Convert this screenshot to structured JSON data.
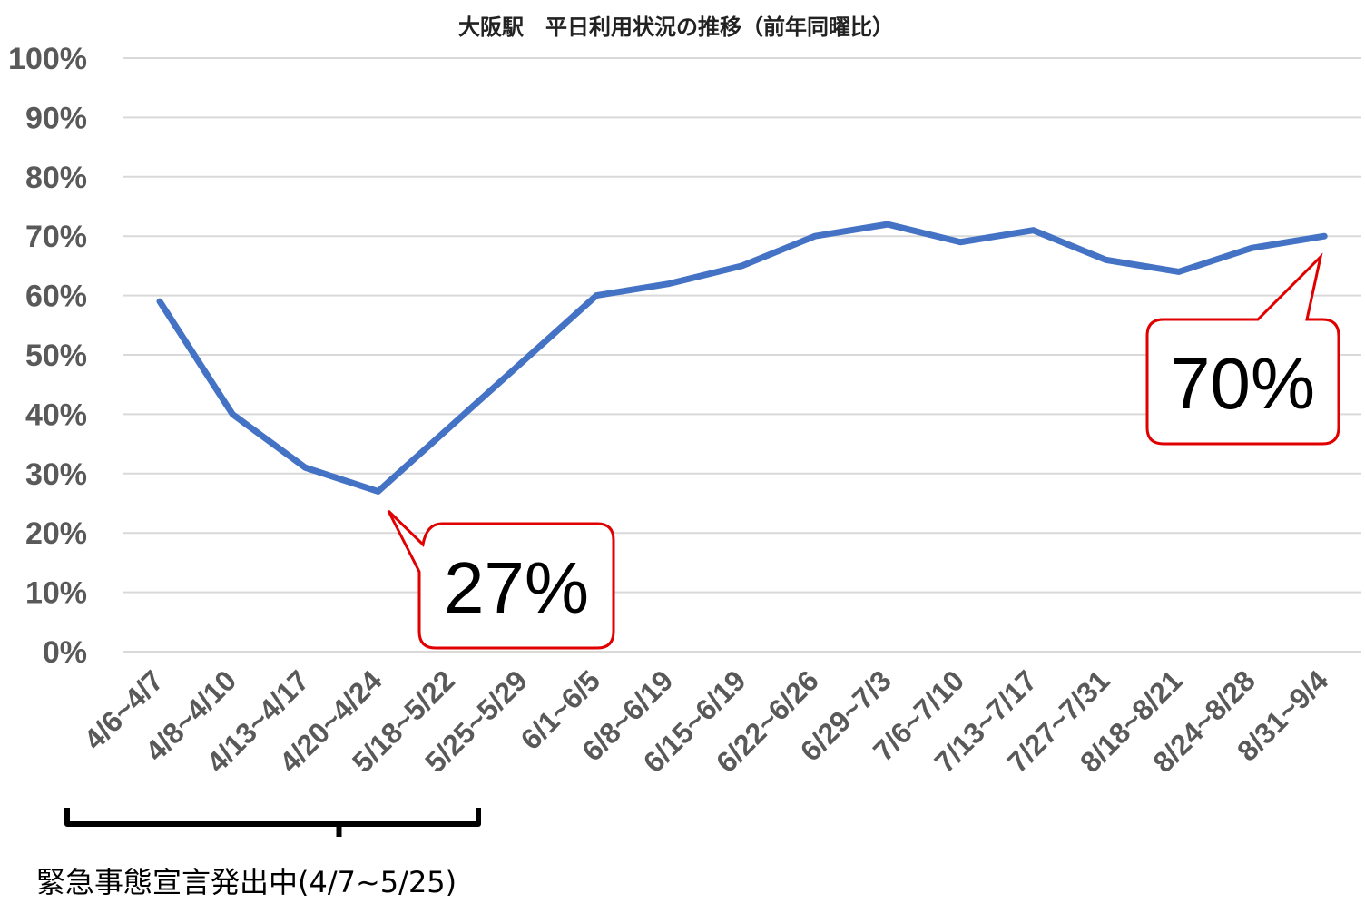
{
  "chart_data": {
    "type": "line",
    "title": "大阪駅　平日利用状況の推移（前年同曜比）",
    "categories": [
      "4/6~4/7",
      "4/8~4/10",
      "4/13~4/17",
      "4/20~4/24",
      "5/18~5/22",
      "5/25~5/29",
      "6/1~6/5",
      "6/8~6/19",
      "6/15~6/19",
      "6/22~6/26",
      "6/29~7/3",
      "7/6~7/10",
      "7/13~7/17",
      "7/27~7/31",
      "8/18~8/21",
      "8/24~8/28",
      "8/31~9/4"
    ],
    "values": [
      59,
      40,
      31,
      27,
      38,
      49,
      60,
      62,
      65,
      70,
      72,
      69,
      71,
      66,
      64,
      68,
      70
    ],
    "ylim": [
      0,
      100
    ],
    "yticks": [
      "0%",
      "10%",
      "20%",
      "30%",
      "40%",
      "50%",
      "60%",
      "70%",
      "80%",
      "90%",
      "100%"
    ],
    "grid": true,
    "line_color": "#4472C4",
    "callouts": [
      {
        "label": "27%",
        "point_index": 3,
        "border_color": "#E00000"
      },
      {
        "label": "70%",
        "point_index": 16,
        "border_color": "#E00000"
      }
    ],
    "annotation": {
      "text": "緊急事態宣言発出中(4/7~5/25)",
      "range": [
        0,
        5
      ]
    }
  }
}
